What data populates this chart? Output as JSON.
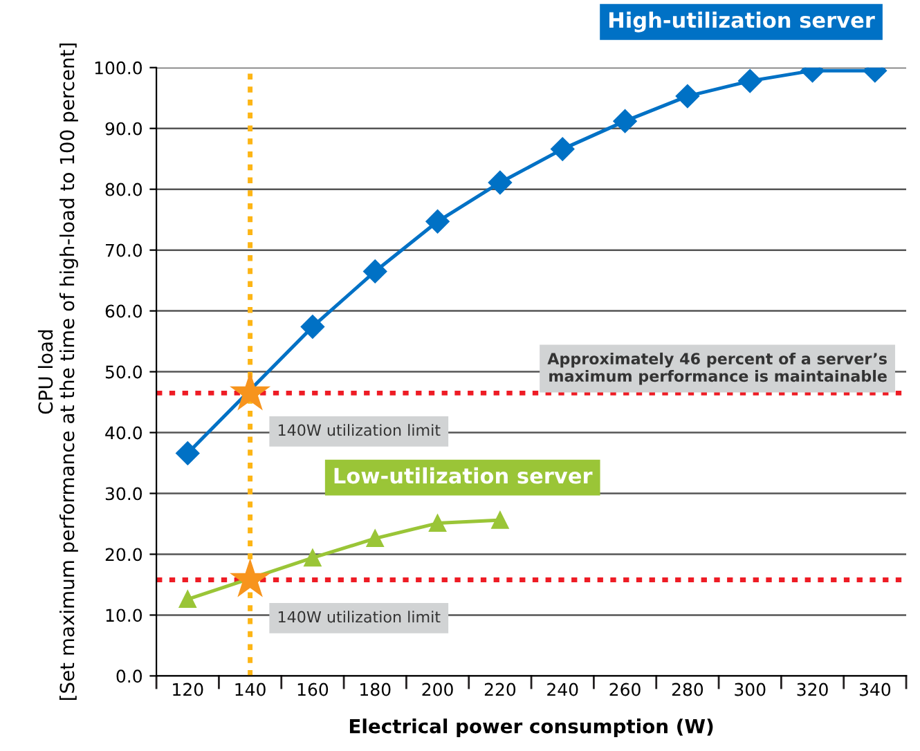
{
  "chart_data": {
    "type": "line",
    "xlabel": "Electrical power consumption (W)",
    "ylabel": "CPU load\n[Set maximum performance at the time of high-load to 100 percent]",
    "categories": [
      "120",
      "140",
      "160",
      "180",
      "200",
      "220",
      "240",
      "260",
      "280",
      "300",
      "320",
      "340"
    ],
    "series": [
      {
        "name": "High-utilization server",
        "color": "#0071c5",
        "marker": "diamond",
        "values": [
          36.6,
          null,
          57.4,
          66.5,
          74.7,
          81.1,
          86.6,
          91.2,
          95.3,
          97.8,
          99.5,
          99.5
        ]
      },
      {
        "name": "Low-utilization server",
        "color": "#9ac537",
        "marker": "triangle",
        "values": [
          12.6,
          null,
          19.4,
          22.6,
          25.1,
          25.6,
          null,
          null,
          null,
          null,
          null,
          null
        ]
      },
      {
        "type": "scatter",
        "color": "#f7941d",
        "marker": "star",
        "values": [
          null,
          46.5,
          null,
          null,
          null,
          null,
          null,
          null,
          null,
          null,
          null,
          null
        ]
      },
      {
        "type": "scatter",
        "color": "#f7941d",
        "marker": "star",
        "values": [
          null,
          15.8,
          null,
          null,
          null,
          null,
          null,
          null,
          null,
          null,
          null,
          null
        ]
      }
    ],
    "ylim": [
      0,
      100
    ],
    "yticks": [
      {
        "value": 0,
        "label": "0.0"
      },
      {
        "value": 10,
        "label": "10.0"
      },
      {
        "value": 20,
        "label": "20.0"
      },
      {
        "value": 30,
        "label": "30.0"
      },
      {
        "value": 40,
        "label": "40.0"
      },
      {
        "value": 50,
        "label": "50.0"
      },
      {
        "value": 60,
        "label": "60.0"
      },
      {
        "value": 70,
        "label": "70.0"
      },
      {
        "value": 80,
        "label": "80.0"
      },
      {
        "value": 90,
        "label": "90.0"
      },
      {
        "value": 100,
        "label": "100.0"
      }
    ],
    "ref_lines": [
      {
        "axis": "y",
        "value": 46.5,
        "color": "#ee1c25",
        "line_style": "dotted",
        "label": "Approximately 46 percent of a server’s\nmaximum performance is maintainable"
      },
      {
        "axis": "y",
        "value": 15.8,
        "color": "#ee1c25",
        "line_style": "dotted"
      },
      {
        "axis": "x",
        "value": "140",
        "color": "#fdb515",
        "line_style": "dotted"
      }
    ],
    "annotations": [
      {
        "text": "140W utilization limit",
        "x": "140",
        "y": 46.5
      },
      {
        "text": "140W utilization limit",
        "x": "140",
        "y": 15.8
      }
    ],
    "grid": "y",
    "legend": false,
    "line_style": "solid"
  }
}
